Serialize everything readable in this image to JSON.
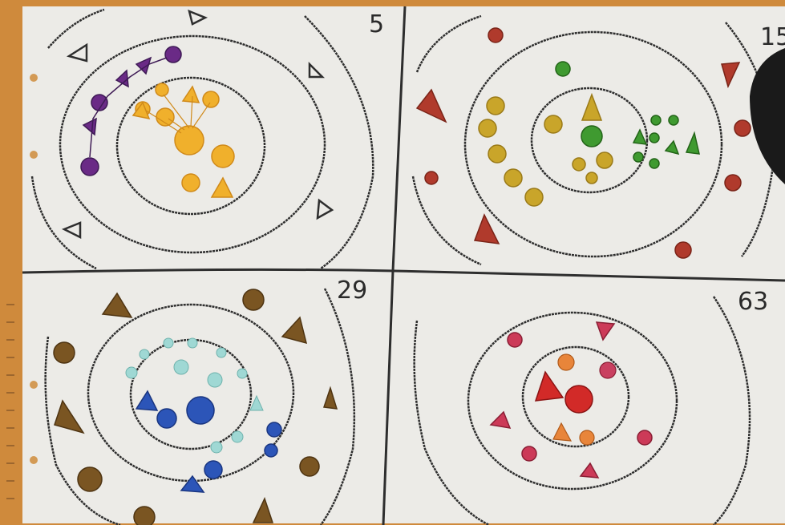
{
  "image": {
    "panels": [
      {
        "number": "5",
        "colors": {
          "inner": "#f0b02c",
          "middle": "#6a2a86",
          "outer": "#303030"
        }
      },
      {
        "number": "15",
        "colors": {
          "inner": "#3f9a30",
          "middle": "#c9a52a",
          "outer": "#b03a2c"
        }
      },
      {
        "number": "29",
        "colors": {
          "inner": "#2c55b8",
          "middle": "#9fd8d4",
          "outer": "#7a5522"
        }
      },
      {
        "number": "63",
        "colors": {
          "inner": "#d22a28",
          "middle": "#cc3a58",
          "outer": "#cc8a8a"
        }
      }
    ],
    "colors": {
      "paper": "#ecebe7",
      "table": "#cf8a3c",
      "pencil": "#2e2e2e"
    }
  }
}
